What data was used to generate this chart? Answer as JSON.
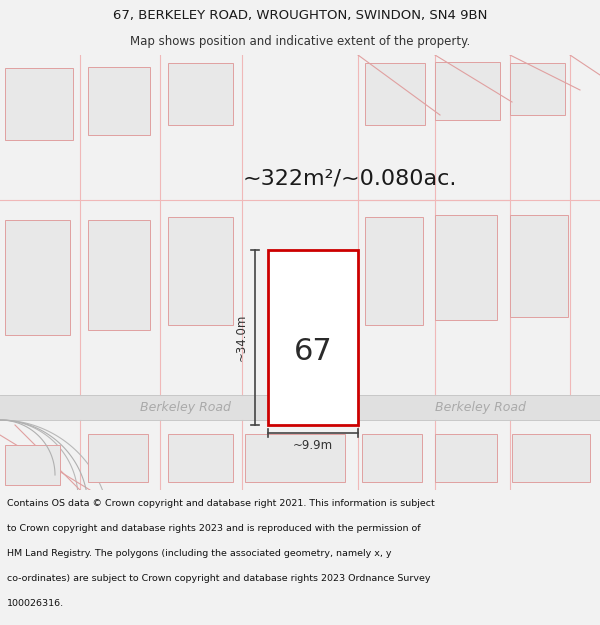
{
  "title_line1": "67, BERKELEY ROAD, WROUGHTON, SWINDON, SN4 9BN",
  "title_line2": "Map shows position and indicative extent of the property.",
  "area_text": "~322m²/~0.080ac.",
  "property_number": "67",
  "dim_height": "~34.0m",
  "dim_width": "~9.9m",
  "road_label_left": "Berkeley Road",
  "road_label_right": "Berkeley Road",
  "footer_lines": [
    "Contains OS data © Crown copyright and database right 2021. This information is subject",
    "to Crown copyright and database rights 2023 and is reproduced with the permission of",
    "HM Land Registry. The polygons (including the associated geometry, namely x, y",
    "co-ordinates) are subject to Crown copyright and database rights 2023 Ordnance Survey",
    "100026316."
  ],
  "property_fill": "#ffffff",
  "property_border": "#cc0000",
  "plot_fill": "#e8e8e8",
  "plot_border": "#e0a0a0",
  "road_fill": "#e0e0e0",
  "grid_color": "#f0b8b8",
  "dim_color": "#444444",
  "text_dark": "#1a1a1a",
  "road_text_color": "#aaaaaa",
  "map_bg": "#ffffff",
  "upper_left_bg": "#f8f8f8"
}
